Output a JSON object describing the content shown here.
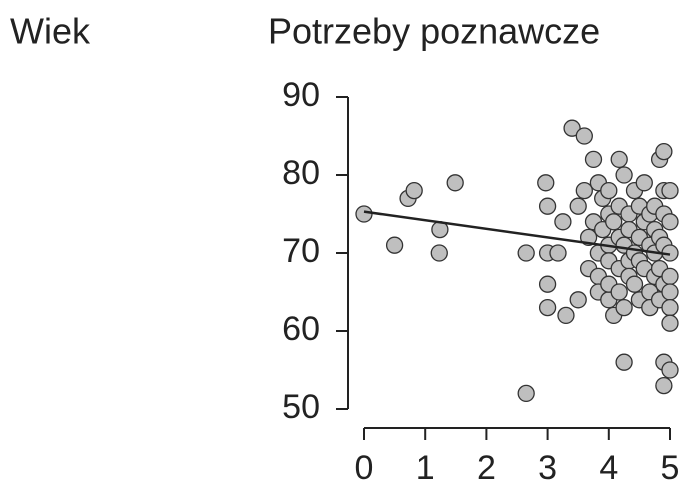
{
  "row_label": "Wiek",
  "chart_data": {
    "type": "scatter",
    "title": "Potrzeby poznawcze",
    "x": [
      0,
      0.5,
      0.72,
      0.82,
      1.24,
      1.23,
      1.49,
      2.65,
      2.65,
      2.97,
      3,
      3,
      3,
      3,
      3.17,
      3.3,
      3.25,
      3.4,
      3.6,
      3.5,
      3.5,
      3.6,
      3.67,
      3.67,
      3.75,
      3.75,
      3.83,
      3.83,
      3.83,
      3.83,
      3.9,
      3.9,
      4,
      4,
      4,
      4,
      4,
      4,
      4.08,
      4.08,
      4.17,
      4.17,
      4.17,
      4.17,
      4.17,
      4.25,
      4.25,
      4.25,
      4.25,
      4.33,
      4.33,
      4.33,
      4.33,
      4.42,
      4.42,
      4.42,
      4.5,
      4.5,
      4.5,
      4.5,
      4.58,
      4.58,
      4.58,
      4.67,
      4.67,
      4.67,
      4.67,
      4.75,
      4.75,
      4.75,
      4.75,
      4.83,
      4.83,
      4.83,
      4.83,
      4.9,
      4.9,
      4.9,
      4.9,
      4.9,
      4.9,
      4.9,
      5,
      5,
      5,
      5,
      5,
      5,
      5,
      5
    ],
    "values": [
      75,
      71,
      77,
      78,
      73,
      70,
      79,
      70,
      52,
      79,
      76,
      70,
      66,
      63,
      70,
      62,
      74,
      86,
      85,
      76,
      64,
      78,
      72,
      68,
      82,
      74,
      79,
      70,
      67,
      65,
      73,
      77,
      71,
      64,
      78,
      69,
      66,
      75,
      74,
      62,
      82,
      72,
      76,
      68,
      65,
      80,
      71,
      63,
      56,
      75,
      69,
      67,
      73,
      78,
      70,
      66,
      76,
      72,
      64,
      69,
      79,
      68,
      74,
      75,
      71,
      65,
      63,
      76,
      70,
      67,
      73,
      82,
      72,
      68,
      64,
      83,
      78,
      75,
      71,
      66,
      56,
      53,
      78,
      74,
      70,
      67,
      65,
      63,
      61,
      55
    ],
    "color": "#bfbfbf",
    "trend_line": {
      "x": [
        0,
        5
      ],
      "values": [
        75.3,
        69.8
      ],
      "color": "#222222"
    },
    "xlim": [
      0,
      5
    ],
    "xticks": [
      0,
      1,
      2,
      3,
      4,
      5
    ],
    "ylim": [
      50,
      90
    ],
    "yticks": [
      50,
      60,
      70,
      80,
      90
    ]
  }
}
